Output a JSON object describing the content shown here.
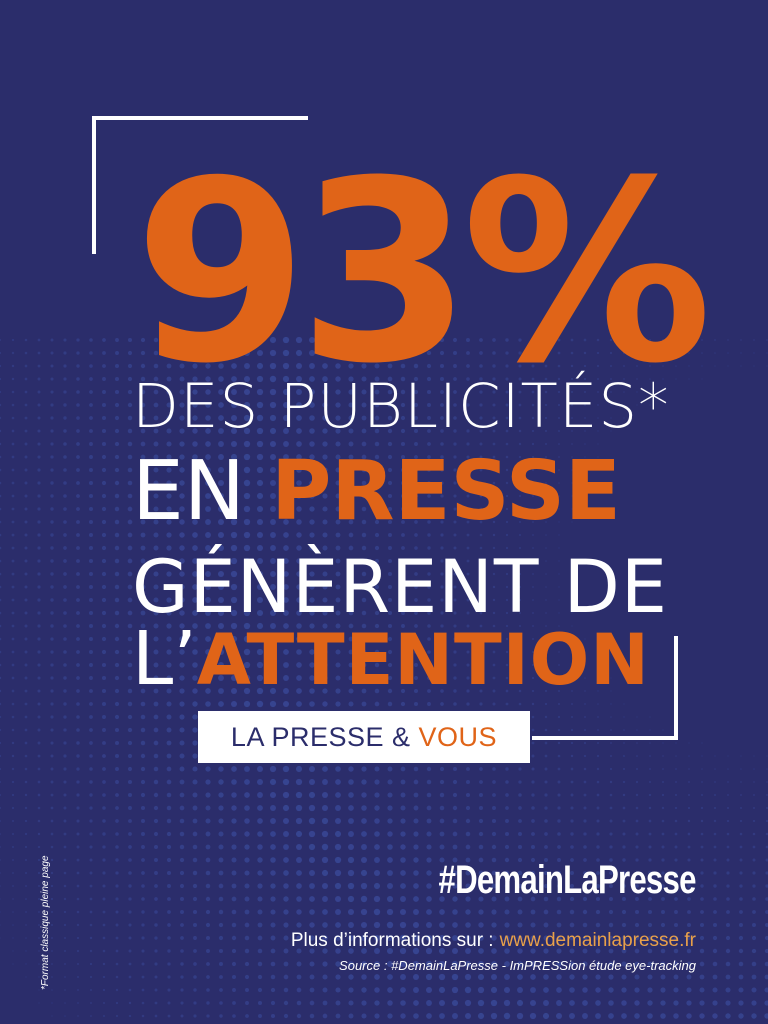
{
  "headline": {
    "percent": "93%",
    "line1": "DES PUBLICITÉS*",
    "line2_prefix": "EN ",
    "line2_highlight": "PRESSE",
    "line3": "GÉNÈRENT DE",
    "line4_prefix": "L’",
    "line4_highlight": "ATTENTION"
  },
  "tag": {
    "part1": "LA PRESSE",
    "amp": "&",
    "part2": "VOUS"
  },
  "footer": {
    "hashtag": "#DemainLaPresse",
    "info_label": "Plus d’informations sur :",
    "info_url": "www.demainlapresse.fr",
    "source": "Source : #DemainLaPresse - ImPRESSion étude eye-tracking",
    "side_note": "*Format classique pleine page"
  },
  "colors": {
    "background": "#2b2d6b",
    "accent": "#e06418",
    "link": "#e8a04a",
    "text": "#ffffff"
  }
}
